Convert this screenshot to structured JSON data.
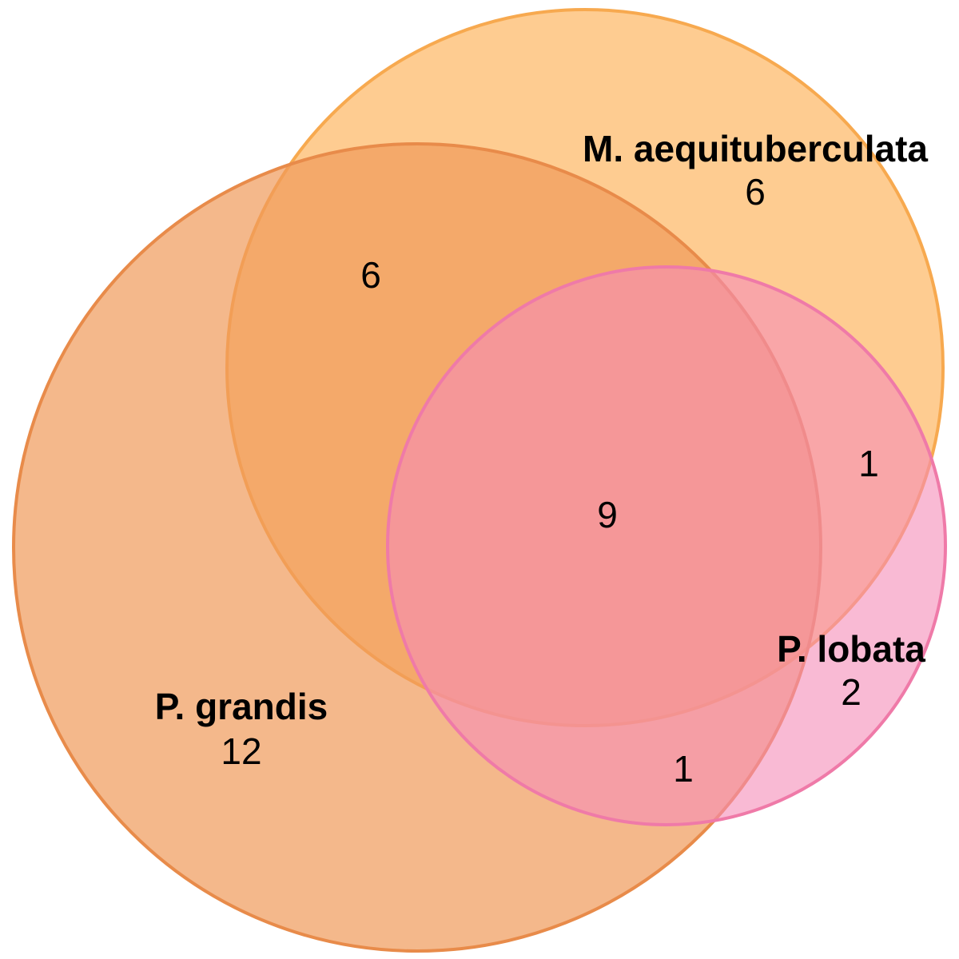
{
  "sets": [
    {
      "key": "mae",
      "name": "M. aequituberculata",
      "count": "6",
      "fill": "#FDB762",
      "stroke": "#F7A94F"
    },
    {
      "key": "pgr",
      "name": "P. grandis",
      "count": "12",
      "fill": "#EF9A5A",
      "stroke": "#E88B4A"
    },
    {
      "key": "plo",
      "name": "P. lobata",
      "count": "2",
      "fill": "#F58CB8",
      "stroke": "#EF7AA8"
    }
  ],
  "intersections": {
    "mae_pgr": "6",
    "mae_plo": "1",
    "pgr_plo": "1",
    "all": "9"
  }
}
